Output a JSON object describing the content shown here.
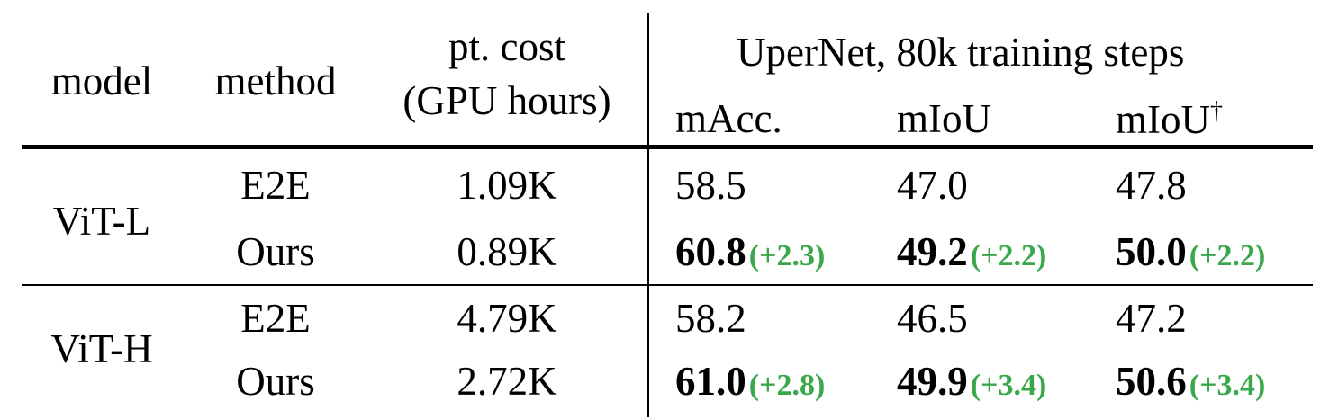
{
  "header": {
    "model": "model",
    "method": "method",
    "cost_line1": "pt. cost",
    "cost_line2": "(GPU hours)",
    "group": "UperNet, 80k training steps",
    "col_macc": "mAcc.",
    "col_miou": "mIoU",
    "col_miou_dag": "mIoU",
    "dagger": "†"
  },
  "gain_color": "#3aa84a",
  "groups": [
    {
      "model": "ViT-L",
      "rows": [
        {
          "method": "E2E",
          "cost": "1.09K",
          "macc": "58.5",
          "miou": "47.0",
          "miou_dag": "47.8",
          "macc_gain": "",
          "miou_gain": "",
          "miou_dag_gain": ""
        },
        {
          "method": "Ours",
          "cost": "0.89K",
          "macc": "60.8",
          "miou": "49.2",
          "miou_dag": "50.0",
          "macc_gain": "(+2.3)",
          "miou_gain": "(+2.2)",
          "miou_dag_gain": "(+2.2)"
        }
      ]
    },
    {
      "model": "ViT-H",
      "rows": [
        {
          "method": "E2E",
          "cost": "4.79K",
          "macc": "58.2",
          "miou": "46.5",
          "miou_dag": "47.2",
          "macc_gain": "",
          "miou_gain": "",
          "miou_dag_gain": ""
        },
        {
          "method": "Ours",
          "cost": "2.72K",
          "macc": "61.0",
          "miou": "49.9",
          "miou_dag": "50.6",
          "macc_gain": "(+2.8)",
          "miou_gain": "(+3.4)",
          "miou_dag_gain": "(+3.4)"
        }
      ]
    }
  ]
}
